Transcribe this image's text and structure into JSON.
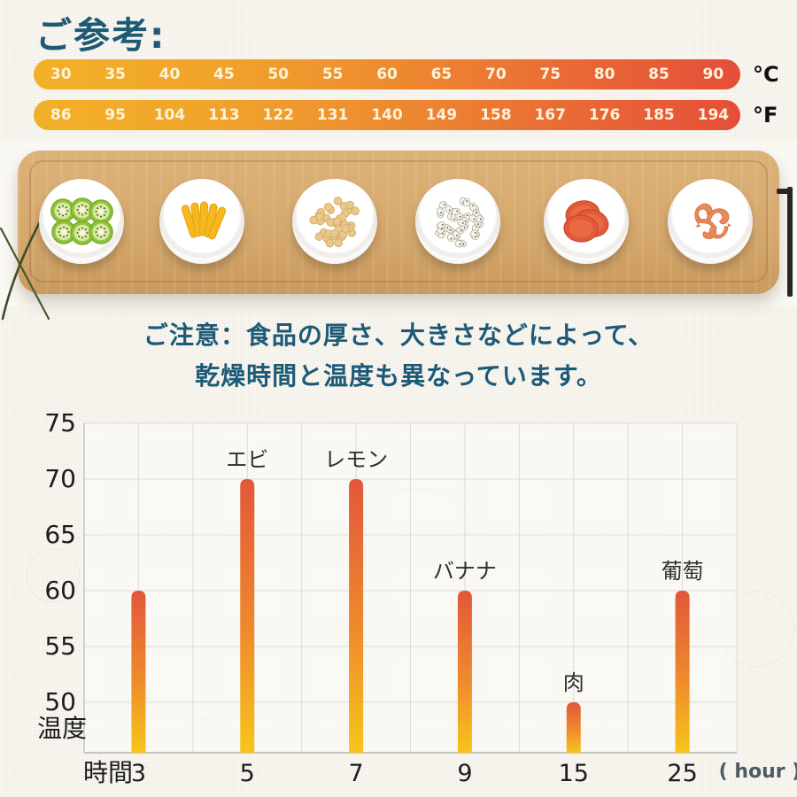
{
  "title": "ご参考:",
  "temperature_scales": {
    "celsius": {
      "unit": "°C",
      "values": [
        30,
        35,
        40,
        45,
        50,
        55,
        60,
        65,
        70,
        75,
        80,
        85,
        90
      ]
    },
    "fahrenheit": {
      "unit": "°F",
      "values": [
        86,
        95,
        104,
        113,
        122,
        131,
        140,
        149,
        158,
        167,
        176,
        185,
        194
      ]
    }
  },
  "tray": {
    "plates": [
      "kiwi-plate",
      "mango-plate",
      "soybean-plate",
      "coix-seed-plate",
      "dried-meat-plate",
      "dried-shrimp-plate"
    ]
  },
  "notice": {
    "line1": "ご注意：食品の厚さ、大きさなどによって、",
    "line2": "乾燥時間と温度も異なっています。"
  },
  "chart_data": {
    "type": "bar",
    "title": "",
    "xlabel": "時間",
    "ylabel": "温度",
    "x_unit_label": "( hour )",
    "categories": [
      "3",
      "5",
      "7",
      "9",
      "15",
      "25"
    ],
    "values": [
      60,
      70,
      70,
      60,
      50,
      60
    ],
    "bar_labels": [
      "",
      "エビ",
      "レモン",
      "バナナ",
      "肉",
      "葡萄"
    ],
    "ylim": [
      45,
      75
    ],
    "yticks": [
      75,
      70,
      65,
      60,
      55,
      50
    ],
    "grid": true,
    "legend": "none",
    "bar_gradient": [
      "#e2573b",
      "#ef8a2c",
      "#f6c51b"
    ]
  },
  "colors": {
    "title_teal": "#1f5a73",
    "notice_teal": "#1d5a78",
    "scale_gradient_start": "#f2b028",
    "scale_gradient_end": "#e54e39",
    "wood": "#d6a96e",
    "grid_line": "#dcdcd6",
    "axis_line": "#c6c6c0",
    "axis_text": "#222222",
    "unit_text": "#4c5b66"
  }
}
